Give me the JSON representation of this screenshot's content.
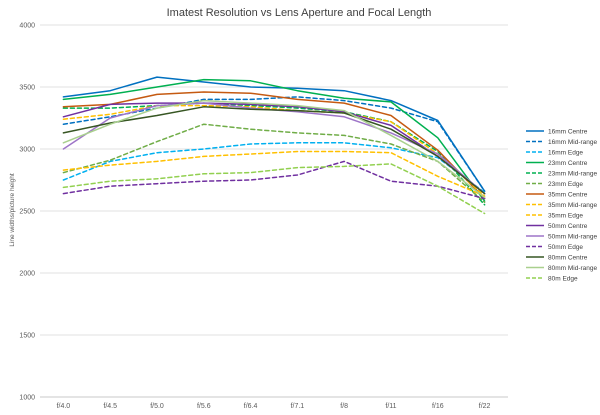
{
  "chart_data": {
    "type": "line",
    "title": "Imatest Resolution vs Lens Aperture and Focal Length",
    "xlabel": "",
    "ylabel": "Line widths/picture height",
    "categories": [
      "f/4.0",
      "f/4.5",
      "f/5.0",
      "f/5.6",
      "f/6.4",
      "f/7.1",
      "f/8",
      "f/11",
      "f/16",
      "f/22"
    ],
    "ylim": [
      1000,
      4000
    ],
    "yticks": [
      "1000",
      "1500",
      "2000",
      "2500",
      "3000",
      "3500",
      "4000"
    ],
    "grid": true,
    "legend_position": "right",
    "series": [
      {
        "name": "16mm Centre",
        "color": "#0070c0",
        "dash": "solid",
        "values": [
          3420,
          3470,
          3580,
          3540,
          3500,
          3490,
          3470,
          3390,
          3230,
          2660
        ]
      },
      {
        "name": "16mm Mid-range",
        "color": "#0070c0",
        "dash": "dashed",
        "values": [
          3200,
          3260,
          3330,
          3400,
          3400,
          3420,
          3390,
          3330,
          3220,
          2660
        ]
      },
      {
        "name": "16mm Edge",
        "color": "#00b0f0",
        "dash": "dashed",
        "values": [
          2750,
          2900,
          2970,
          3000,
          3040,
          3050,
          3050,
          3010,
          2930,
          2650
        ]
      },
      {
        "name": "23mm Centre",
        "color": "#00b050",
        "dash": "solid",
        "values": [
          3400,
          3440,
          3500,
          3560,
          3550,
          3470,
          3410,
          3380,
          3090,
          2580
        ]
      },
      {
        "name": "23mm Mid-range",
        "color": "#00b050",
        "dash": "dashed",
        "values": [
          3330,
          3330,
          3350,
          3370,
          3350,
          3330,
          3300,
          3220,
          2980,
          2550
        ]
      },
      {
        "name": "23mm Edge",
        "color": "#70ad47",
        "dash": "dashed",
        "values": [
          2810,
          2910,
          3060,
          3200,
          3160,
          3130,
          3110,
          3040,
          2900,
          2570
        ]
      },
      {
        "name": "35mm Centre",
        "color": "#c55a11",
        "dash": "solid",
        "values": [
          3340,
          3360,
          3440,
          3460,
          3450,
          3400,
          3370,
          3270,
          2990,
          2600
        ]
      },
      {
        "name": "35mm Mid-range",
        "color": "#ffc000",
        "dash": "dashed",
        "values": [
          3240,
          3280,
          3350,
          3350,
          3340,
          3310,
          3290,
          3220,
          2960,
          2620
        ]
      },
      {
        "name": "35mm Edge",
        "color": "#ffc000",
        "dash": "dashed",
        "values": [
          2830,
          2870,
          2900,
          2940,
          2960,
          2980,
          2980,
          2970,
          2780,
          2620
        ]
      },
      {
        "name": "50mm Centre",
        "color": "#7030a0",
        "dash": "solid",
        "values": [
          3260,
          3360,
          3370,
          3370,
          3360,
          3340,
          3300,
          3190,
          2940,
          2640
        ]
      },
      {
        "name": "50mm Mid-range",
        "color": "#9e75c8",
        "dash": "solid",
        "values": [
          3000,
          3250,
          3350,
          3370,
          3330,
          3300,
          3260,
          3130,
          2960,
          2640
        ]
      },
      {
        "name": "50mm Edge",
        "color": "#7030a0",
        "dash": "dashed",
        "values": [
          2640,
          2700,
          2720,
          2740,
          2750,
          2790,
          2900,
          2740,
          2700,
          2600
        ]
      },
      {
        "name": "80mm Centre",
        "color": "#375623",
        "dash": "solid",
        "values": [
          3130,
          3210,
          3270,
          3340,
          3320,
          3310,
          3290,
          3160,
          2940,
          2640
        ]
      },
      {
        "name": "80mm Mid-range",
        "color": "#a9d08e",
        "dash": "solid",
        "values": [
          3050,
          3200,
          3330,
          3390,
          3370,
          3350,
          3310,
          3110,
          2900,
          2610
        ]
      },
      {
        "name": "80m Edge",
        "color": "#92d050",
        "dash": "dashed",
        "values": [
          2690,
          2740,
          2760,
          2800,
          2810,
          2850,
          2860,
          2880,
          2700,
          2480
        ]
      }
    ]
  }
}
